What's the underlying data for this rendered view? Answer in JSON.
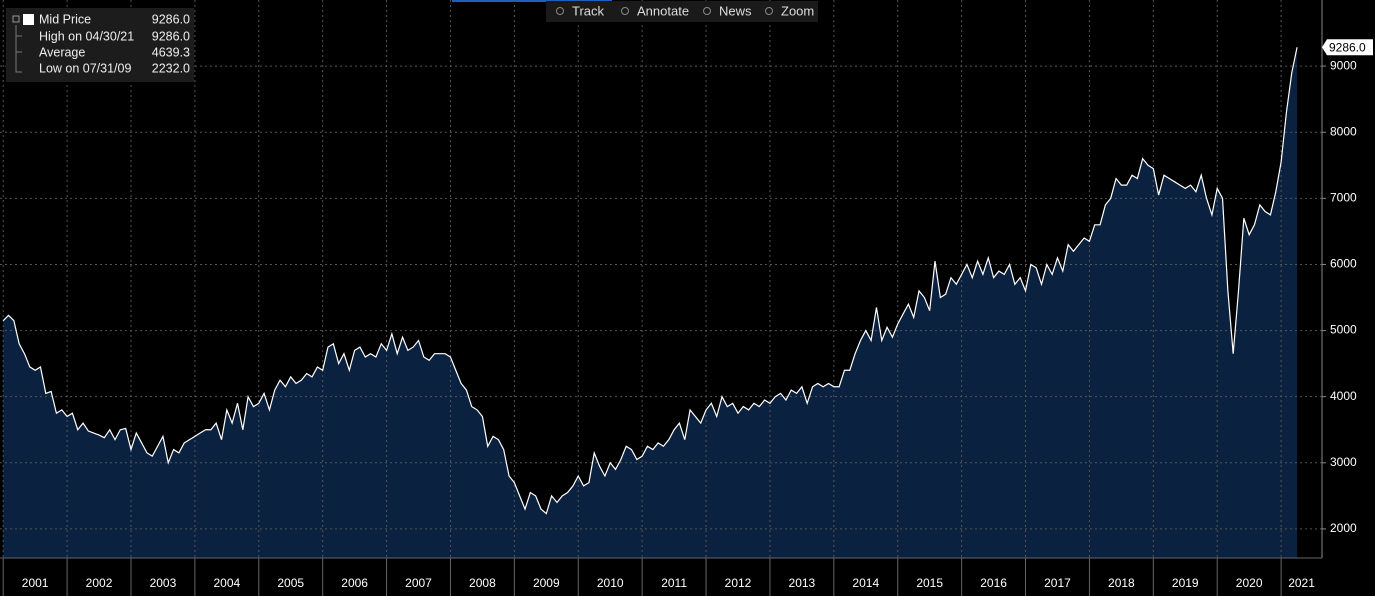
{
  "chart_data": {
    "type": "area",
    "toolbar": [
      "Track",
      "Annotate",
      "News",
      "Zoom"
    ],
    "stats": [
      {
        "label": "High on 04/30/21",
        "value": "9286.0"
      },
      {
        "label": "Average",
        "value": "4639.3"
      },
      {
        "label": "Low on 07/31/09",
        "value": "2232.0"
      }
    ],
    "x": [
      2001,
      2001.083,
      2001.167,
      2001.25,
      2001.333,
      2001.417,
      2001.5,
      2001.583,
      2001.667,
      2001.75,
      2001.833,
      2001.917,
      2002,
      2002.083,
      2002.167,
      2002.25,
      2002.333,
      2002.417,
      2002.5,
      2002.583,
      2002.667,
      2002.75,
      2002.833,
      2002.917,
      2003,
      2003.083,
      2003.167,
      2003.25,
      2003.333,
      2003.417,
      2003.5,
      2003.583,
      2003.667,
      2003.75,
      2003.833,
      2003.917,
      2004,
      2004.083,
      2004.167,
      2004.25,
      2004.333,
      2004.417,
      2004.5,
      2004.583,
      2004.667,
      2004.75,
      2004.833,
      2004.917,
      2005,
      2005.083,
      2005.167,
      2005.25,
      2005.333,
      2005.417,
      2005.5,
      2005.583,
      2005.667,
      2005.75,
      2005.833,
      2005.917,
      2006,
      2006.083,
      2006.167,
      2006.25,
      2006.333,
      2006.417,
      2006.5,
      2006.583,
      2006.667,
      2006.75,
      2006.833,
      2006.917,
      2007,
      2007.083,
      2007.167,
      2007.25,
      2007.333,
      2007.417,
      2007.5,
      2007.583,
      2007.667,
      2007.75,
      2007.833,
      2007.917,
      2008,
      2008.083,
      2008.167,
      2008.25,
      2008.333,
      2008.417,
      2008.5,
      2008.583,
      2008.667,
      2008.75,
      2008.833,
      2008.917,
      2009,
      2009.083,
      2009.167,
      2009.25,
      2009.333,
      2009.417,
      2009.5,
      2009.583,
      2009.667,
      2009.75,
      2009.833,
      2009.917,
      2010,
      2010.083,
      2010.167,
      2010.25,
      2010.333,
      2010.417,
      2010.5,
      2010.583,
      2010.667,
      2010.75,
      2010.833,
      2010.917,
      2011,
      2011.083,
      2011.167,
      2011.25,
      2011.333,
      2011.417,
      2011.5,
      2011.583,
      2011.667,
      2011.75,
      2011.833,
      2011.917,
      2012,
      2012.083,
      2012.167,
      2012.25,
      2012.333,
      2012.417,
      2012.5,
      2012.583,
      2012.667,
      2012.75,
      2012.833,
      2012.917,
      2013,
      2013.083,
      2013.167,
      2013.25,
      2013.333,
      2013.417,
      2013.5,
      2013.583,
      2013.667,
      2013.75,
      2013.833,
      2013.917,
      2014,
      2014.083,
      2014.167,
      2014.25,
      2014.333,
      2014.417,
      2014.5,
      2014.583,
      2014.667,
      2014.75,
      2014.833,
      2014.917,
      2015,
      2015.083,
      2015.167,
      2015.25,
      2015.333,
      2015.417,
      2015.5,
      2015.583,
      2015.667,
      2015.75,
      2015.833,
      2015.917,
      2016,
      2016.083,
      2016.167,
      2016.25,
      2016.333,
      2016.417,
      2016.5,
      2016.583,
      2016.667,
      2016.75,
      2016.833,
      2016.917,
      2017,
      2017.083,
      2017.167,
      2017.25,
      2017.333,
      2017.417,
      2017.5,
      2017.583,
      2017.667,
      2017.75,
      2017.833,
      2017.917,
      2018,
      2018.083,
      2018.167,
      2018.25,
      2018.333,
      2018.417,
      2018.5,
      2018.583,
      2018.667,
      2018.75,
      2018.833,
      2018.917,
      2019,
      2019.083,
      2019.167,
      2019.25,
      2019.333,
      2019.417,
      2019.5,
      2019.583,
      2019.667,
      2019.75,
      2019.833,
      2019.917,
      2020,
      2020.083,
      2020.167,
      2020.25,
      2020.333,
      2020.417,
      2020.5,
      2020.583,
      2020.667,
      2020.75,
      2020.833,
      2020.917,
      2021,
      2021.083,
      2021.167,
      2021.25
    ],
    "series": [
      {
        "name": "Mid Price",
        "color": "#ffffff",
        "fill": "#0b2140",
        "last_value_label": "9286.0",
        "values": [
          5150,
          5230,
          5150,
          4800,
          4650,
          4450,
          4400,
          4450,
          4050,
          4080,
          3750,
          3800,
          3700,
          3750,
          3500,
          3600,
          3480,
          3450,
          3420,
          3380,
          3500,
          3350,
          3500,
          3520,
          3200,
          3450,
          3300,
          3150,
          3100,
          3250,
          3400,
          3000,
          3200,
          3150,
          3300,
          3350,
          3400,
          3450,
          3500,
          3500,
          3600,
          3350,
          3800,
          3600,
          3900,
          3500,
          4000,
          3850,
          3900,
          4050,
          3800,
          4100,
          4250,
          4150,
          4300,
          4200,
          4250,
          4350,
          4300,
          4450,
          4400,
          4750,
          4800,
          4500,
          4650,
          4400,
          4700,
          4750,
          4600,
          4650,
          4600,
          4800,
          4700,
          4950,
          4650,
          4900,
          4700,
          4750,
          4850,
          4600,
          4550,
          4650,
          4650,
          4650,
          4600,
          4400,
          4200,
          4100,
          3850,
          3800,
          3700,
          3250,
          3400,
          3350,
          3200,
          2800,
          2700,
          2500,
          2300,
          2550,
          2500,
          2300,
          2232,
          2500,
          2400,
          2500,
          2550,
          2650,
          2800,
          2650,
          2700,
          3150,
          2950,
          2800,
          3000,
          2900,
          3050,
          3250,
          3200,
          3050,
          3100,
          3250,
          3200,
          3300,
          3250,
          3350,
          3500,
          3600,
          3350,
          3800,
          3700,
          3600,
          3800,
          3900,
          3700,
          4000,
          3850,
          3900,
          3750,
          3850,
          3800,
          3900,
          3850,
          3950,
          3900,
          4000,
          4050,
          3950,
          4100,
          4050,
          4150,
          3900,
          4150,
          4200,
          4150,
          4200,
          4150,
          4150,
          4400,
          4400,
          4650,
          4850,
          5000,
          4850,
          5350,
          4850,
          5050,
          4900,
          5100,
          5250,
          5400,
          5200,
          5600,
          5500,
          5300,
          6050,
          5500,
          5550,
          5800,
          5700,
          5850,
          6000,
          5800,
          6050,
          5850,
          6100,
          5800,
          5900,
          5850,
          6000,
          5700,
          5800,
          5600,
          6000,
          5950,
          5700,
          6000,
          5850,
          6100,
          5900,
          6300,
          6200,
          6300,
          6400,
          6350,
          6600,
          6600,
          6900,
          7000,
          7300,
          7200,
          7200,
          7350,
          7300,
          7600,
          7500,
          7450,
          7050,
          7350,
          7300,
          7250,
          7200,
          7150,
          7200,
          7100,
          7350,
          7000,
          6750,
          7150,
          7000,
          5600,
          4650,
          5600,
          6700,
          6450,
          6600,
          6900,
          6800,
          6750,
          7100,
          7550,
          8300,
          8900,
          9286
        ]
      }
    ],
    "xlim": [
      2000.95,
      2021.64
    ],
    "xticks": [
      2001,
      2002,
      2003,
      2004,
      2005,
      2006,
      2007,
      2008,
      2009,
      2010,
      2011,
      2012,
      2013,
      2014,
      2015,
      2016,
      2017,
      2018,
      2019,
      2020,
      2021
    ],
    "ylim": [
      1560,
      10000
    ],
    "yticks": [
      2000,
      3000,
      4000,
      5000,
      6000,
      7000,
      8000,
      9000
    ],
    "grid": true
  }
}
